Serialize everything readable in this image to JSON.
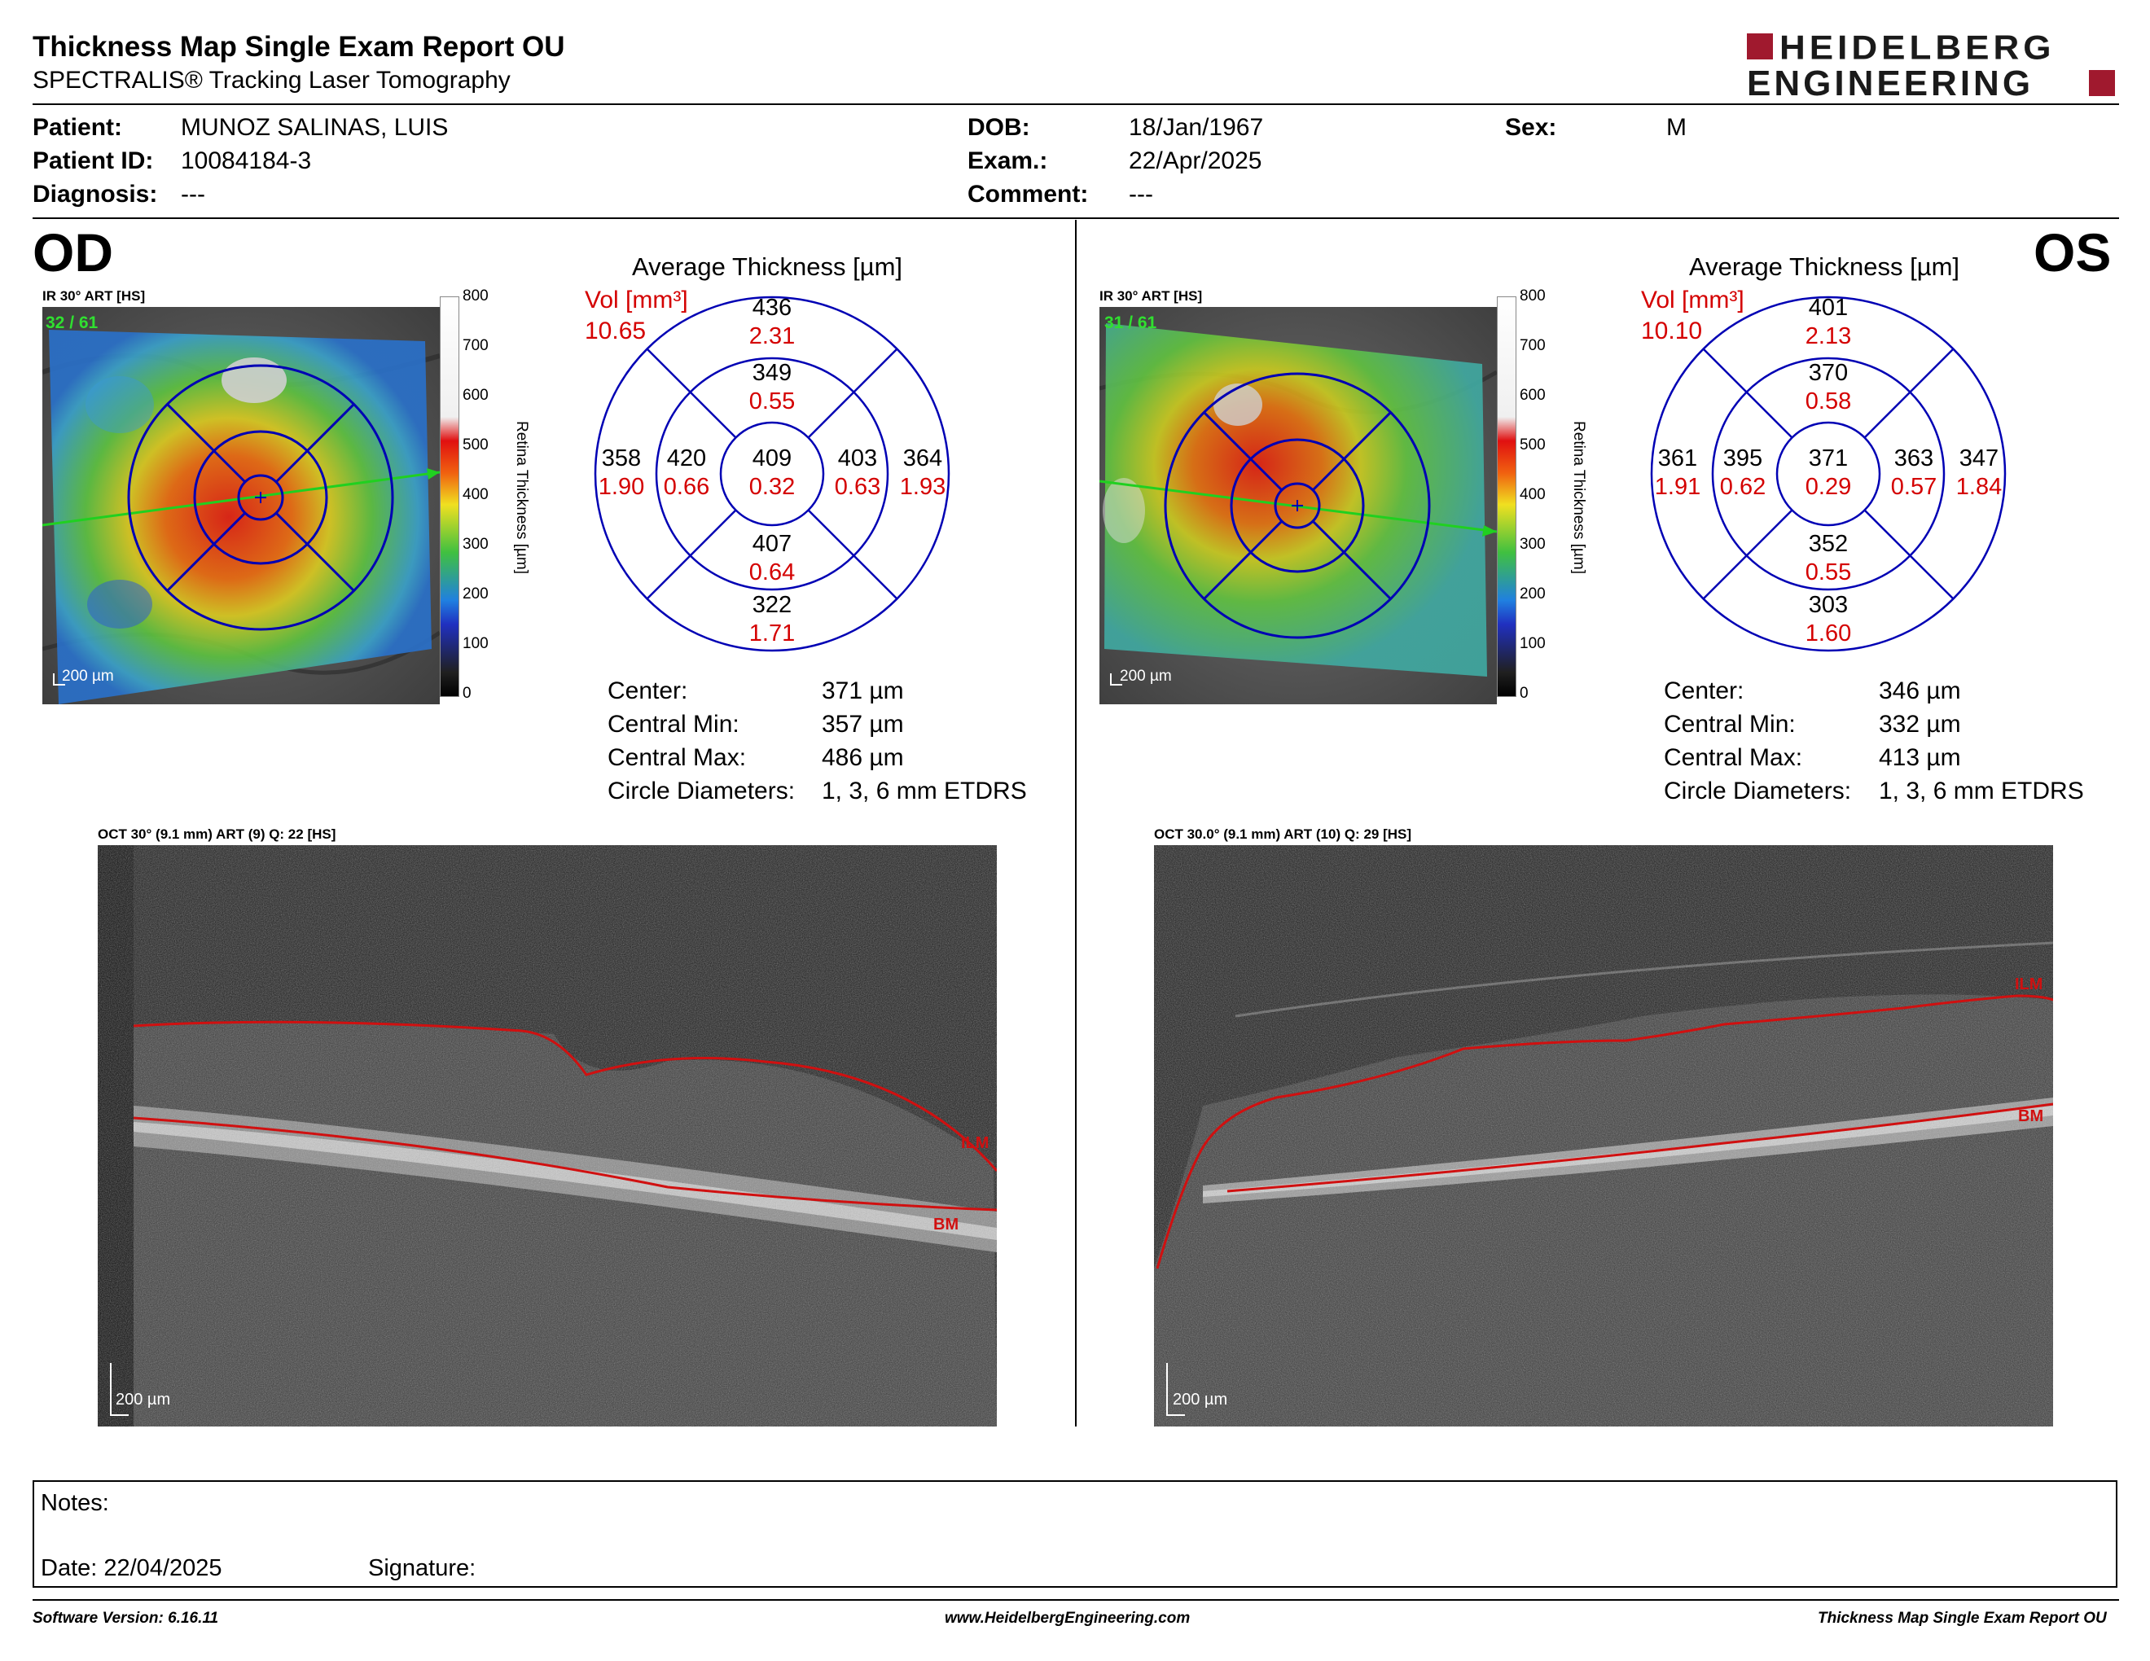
{
  "header": {
    "title": "Thickness Map Single Exam Report OU",
    "subtitle": "SPECTRALIS® Tracking Laser Tomography",
    "logo_line1": "HEIDELBERG",
    "logo_line2": "ENGINEERING",
    "brand_color": "#a0192e"
  },
  "patient": {
    "patient_label": "Patient:",
    "patient_value": "MUNOZ SALINAS, LUIS",
    "id_label": "Patient ID:",
    "id_value": "10084184-3",
    "diagnosis_label": "Diagnosis:",
    "diagnosis_value": "---",
    "dob_label": "DOB:",
    "dob_value": "18/Jan/1967",
    "exam_label": "Exam.:",
    "exam_value": "22/Apr/2025",
    "comment_label": "Comment:",
    "comment_value": "---",
    "sex_label": "Sex:",
    "sex_value": "M"
  },
  "od": {
    "eye": "OD",
    "ir_label": "IR 30° ART [HS]",
    "ir_counter": "32 / 61",
    "ir_scale": "200 µm",
    "colorbar_ticks": [
      "800",
      "700",
      "600",
      "500",
      "400",
      "300",
      "200",
      "100",
      "0"
    ],
    "colorbar_label": "Retina  Thickness [µm]",
    "avg_title": "Average Thickness [µm]",
    "vol_label": "Vol [mm³]",
    "vol_value": "10.65",
    "sectors": {
      "outer_sup_t": "436",
      "outer_sup_v": "2.31",
      "inner_sup_t": "349",
      "inner_sup_v": "0.55",
      "center_t": "409",
      "center_v": "0.32",
      "outer_left_t": "358",
      "outer_left_v": "1.90",
      "inner_left_t": "420",
      "inner_left_v": "0.66",
      "inner_right_t": "403",
      "inner_right_v": "0.63",
      "outer_right_t": "364",
      "outer_right_v": "1.93",
      "inner_inf_t": "407",
      "inner_inf_v": "0.64",
      "outer_inf_t": "322",
      "outer_inf_v": "1.71"
    },
    "stats": [
      {
        "label": "Center:",
        "value": "371 µm"
      },
      {
        "label": "Central Min:",
        "value": "357 µm"
      },
      {
        "label": "Central Max:",
        "value": "486 µm"
      },
      {
        "label": "Circle Diameters:",
        "value": "1, 3, 6 mm ETDRS"
      }
    ],
    "oct_label": "OCT 30° (9.1 mm) ART (9) Q: 22 [HS]",
    "oct_scale": "200 µm",
    "ilm_label": "ILM",
    "bm_label": "BM"
  },
  "os": {
    "eye": "OS",
    "ir_label": "IR 30° ART [HS]",
    "ir_counter": "31 / 61",
    "ir_scale": "200 µm",
    "colorbar_ticks": [
      "800",
      "700",
      "600",
      "500",
      "400",
      "300",
      "200",
      "100",
      "0"
    ],
    "colorbar_label": "Retina  Thickness [µm]",
    "avg_title": "Average Thickness [µm]",
    "vol_label": "Vol [mm³]",
    "vol_value": "10.10",
    "sectors": {
      "outer_sup_t": "401",
      "outer_sup_v": "2.13",
      "inner_sup_t": "370",
      "inner_sup_v": "0.58",
      "center_t": "371",
      "center_v": "0.29",
      "outer_left_t": "361",
      "outer_left_v": "1.91",
      "inner_left_t": "395",
      "inner_left_v": "0.62",
      "inner_right_t": "363",
      "inner_right_v": "0.57",
      "outer_right_t": "347",
      "outer_right_v": "1.84",
      "inner_inf_t": "352",
      "inner_inf_v": "0.55",
      "outer_inf_t": "303",
      "outer_inf_v": "1.60"
    },
    "stats": [
      {
        "label": "Center:",
        "value": "346 µm"
      },
      {
        "label": "Central Min:",
        "value": "332 µm"
      },
      {
        "label": "Central Max:",
        "value": "413 µm"
      },
      {
        "label": "Circle Diameters:",
        "value": "1, 3, 6 mm ETDRS"
      }
    ],
    "oct_label": "OCT 30.0° (9.1 mm) ART (10) Q: 29 [HS]",
    "oct_scale": "200 µm",
    "ilm_label": "ILM",
    "bm_label": "BM"
  },
  "notes": {
    "notes_label": "Notes:",
    "date_label": "Date: 22/04/2025",
    "signature_label": "Signature:"
  },
  "footer": {
    "software": "Software Version: 6.16.11",
    "website": "www.HeidelbergEngineering.com",
    "report": "Thickness Map Single Exam Report OU"
  },
  "colors": {
    "sector_lines": "#0000b4",
    "volume_text": "#d40000",
    "segmentation": "#d01010"
  }
}
